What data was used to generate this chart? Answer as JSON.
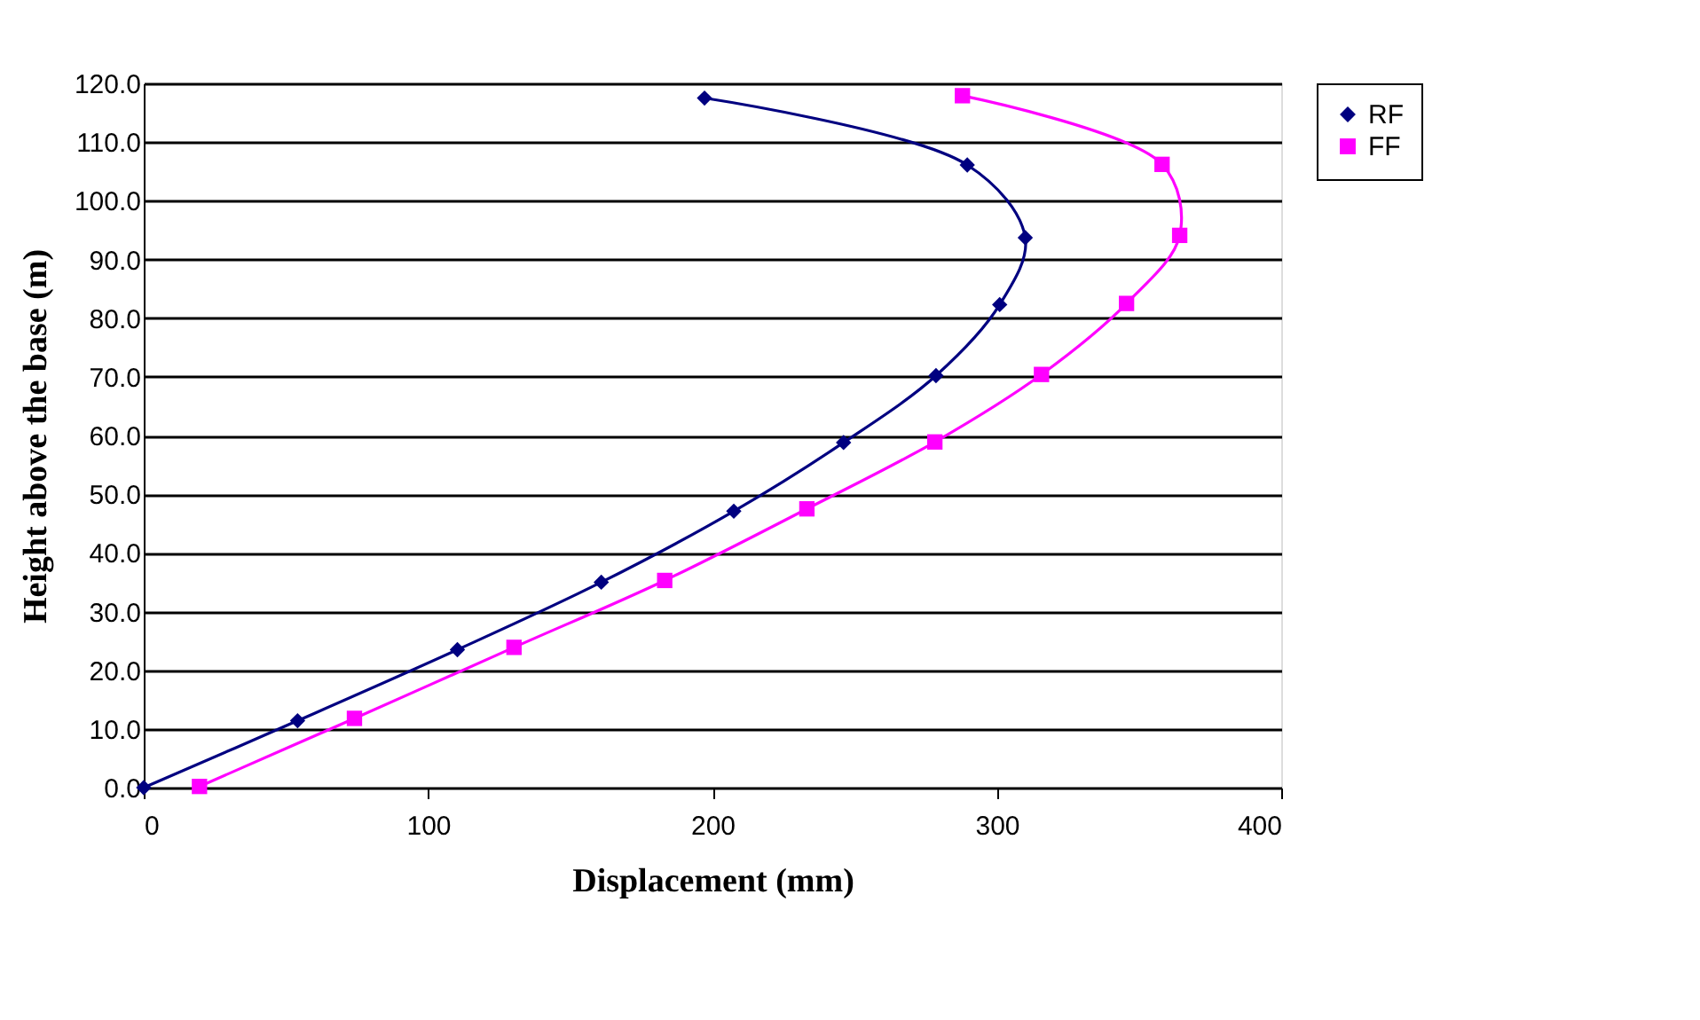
{
  "chart_data": {
    "type": "line",
    "xlabel": "Displacement (mm)",
    "ylabel": "Height  above  the base (m)",
    "series": [
      {
        "name": "RF",
        "color": "#000080",
        "marker": "diamond",
        "x": [
          0,
          54.1,
          110.3,
          160.9,
          207.5,
          246.1,
          278.6,
          301.0,
          310.0,
          289.6,
          197.2
        ],
        "values": [
          0,
          11.4,
          23.5,
          35.0,
          47.1,
          58.8,
          70.2,
          82.3,
          93.7,
          106.1,
          117.5
        ]
      },
      {
        "name": "FF",
        "color": "#ff00ff",
        "marker": "square",
        "x": [
          19.6,
          74.1,
          130.2,
          183.2,
          233.2,
          278.2,
          315.7,
          345.6,
          364.3,
          358.1,
          287.9
        ],
        "values": [
          0.2,
          11.8,
          23.9,
          35.3,
          47.5,
          58.9,
          70.4,
          82.5,
          94.1,
          106.2,
          117.9
        ]
      }
    ],
    "xlim": [
      0,
      400
    ],
    "xticks": [
      0,
      100,
      200,
      300,
      400
    ],
    "ylim": [
      0,
      120
    ],
    "yticks": [
      {
        "value": 0,
        "label": "0.0"
      },
      {
        "value": 10,
        "label": "10.0"
      },
      {
        "value": 20,
        "label": "20.0"
      },
      {
        "value": 30,
        "label": "30.0"
      },
      {
        "value": 40,
        "label": "40.0"
      },
      {
        "value": 50,
        "label": "50.0"
      },
      {
        "value": 60,
        "label": "60.0"
      },
      {
        "value": 70,
        "label": "70.0"
      },
      {
        "value": 80,
        "label": "80.0"
      },
      {
        "value": 90,
        "label": "90.0"
      },
      {
        "value": 100,
        "label": "100.0"
      },
      {
        "value": 110,
        "label": "110.0"
      },
      {
        "value": 120,
        "label": "120.0"
      }
    ],
    "grid": "y",
    "legend": "right",
    "line_style": "solid"
  }
}
